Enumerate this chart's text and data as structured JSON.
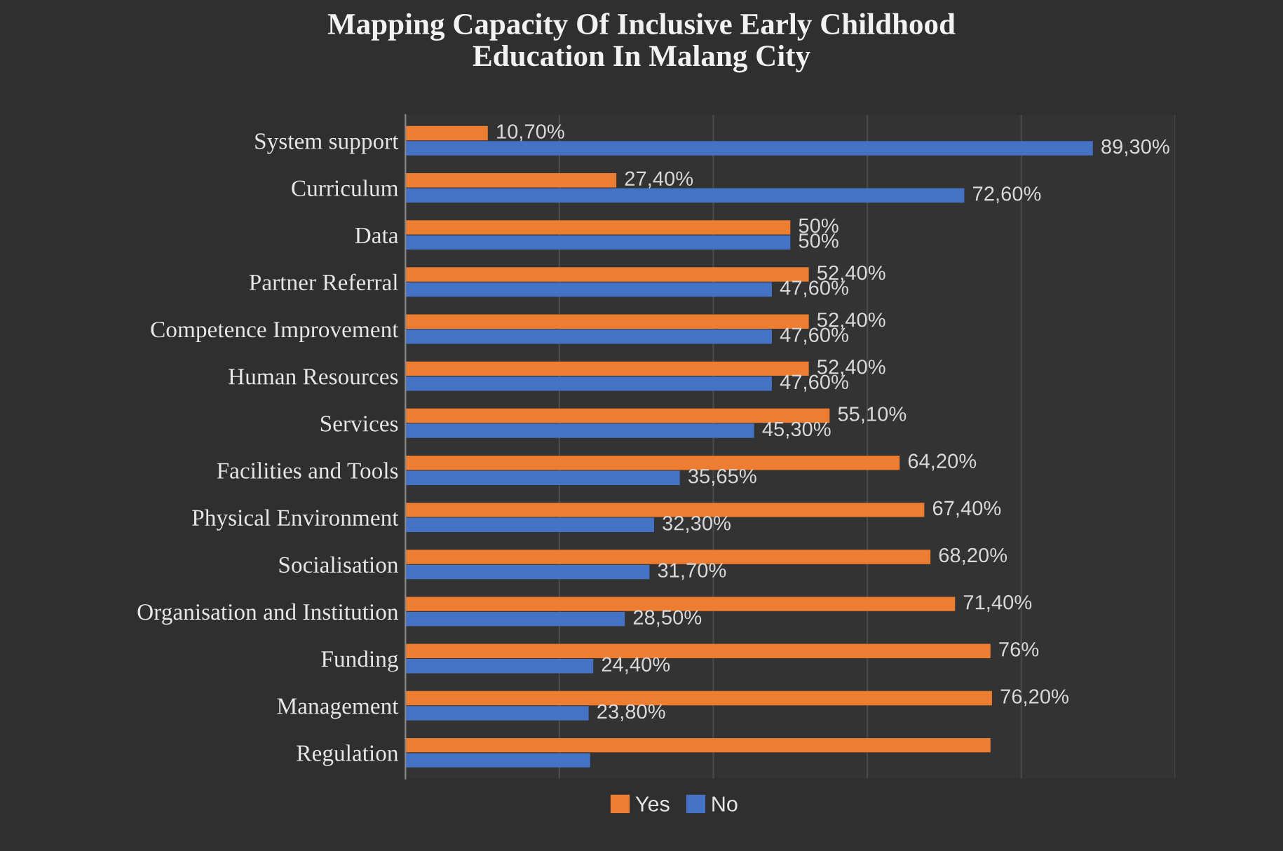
{
  "chart_data": {
    "type": "bar",
    "orientation": "horizontal",
    "title": "Mapping Capacity Of Inclusive Early Childhood\nEducation In Malang City",
    "categories": [
      "System support",
      "Curriculum",
      "Data",
      "Partner Referral",
      "Competence Improvement",
      "Human Resources",
      "Services",
      "Facilities and Tools",
      "Physical Environment",
      "Socialisation",
      "Organisation and Institution",
      "Funding",
      "Management",
      "Regulation"
    ],
    "series": [
      {
        "name": "Yes",
        "color": "#ed7d31",
        "values": [
          10.7,
          27.4,
          50,
          52.4,
          52.4,
          52.4,
          55.1,
          64.2,
          67.4,
          68.2,
          71.4,
          76,
          76.2,
          76
        ],
        "value_labels": [
          "10,70%",
          "27,40%",
          "50%",
          "52,40%",
          "52,40%",
          "52,40%",
          "55,10%",
          "64,20%",
          "67,40%",
          "68,20%",
          "71,40%",
          "76%",
          "76,20%",
          null
        ]
      },
      {
        "name": "No",
        "color": "#4472c4",
        "values": [
          89.3,
          72.6,
          50,
          47.6,
          47.6,
          47.6,
          45.3,
          35.65,
          32.3,
          31.7,
          28.5,
          24.4,
          23.8,
          24
        ],
        "value_labels": [
          "89,30%",
          "72,60%",
          "50%",
          "47,60%",
          "47,60%",
          "47,60%",
          "45,30%",
          "35,65%",
          "32,30%",
          "31,70%",
          "28,50%",
          "24,40%",
          "23,80%",
          null
        ]
      }
    ],
    "xlim": [
      0,
      100
    ],
    "xticks": [
      {
        "value": 0,
        "label": null
      },
      {
        "value": 20,
        "label": null
      },
      {
        "value": 40,
        "label": null
      },
      {
        "value": 60,
        "label": null
      },
      {
        "value": 80,
        "label": null
      },
      {
        "value": 100,
        "label": null
      }
    ],
    "grid": "x",
    "legend": "bottom"
  }
}
